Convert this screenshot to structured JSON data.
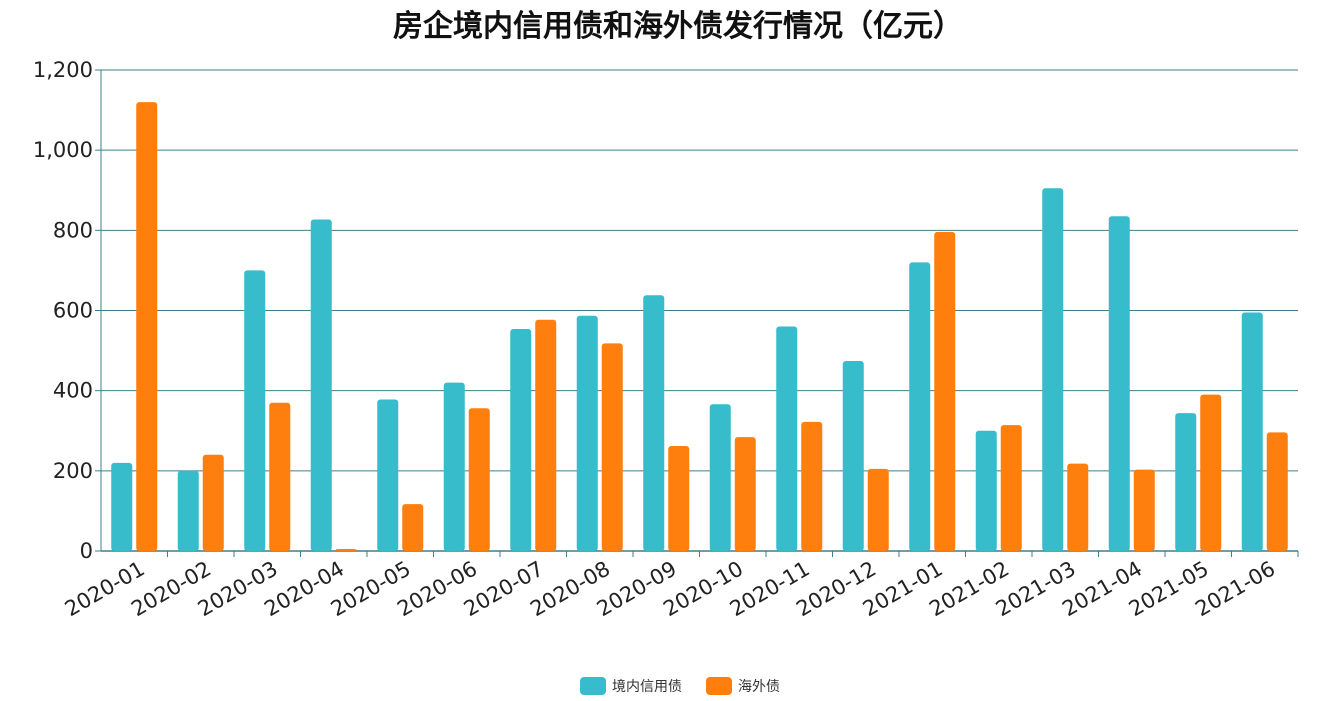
{
  "chart_data": {
    "type": "bar",
    "title": "房企境内信用债和海外债发行情况（亿元）",
    "xlabel": "",
    "ylabel": "",
    "ylim": [
      0,
      1200
    ],
    "yticks": [
      0,
      200,
      400,
      600,
      800,
      1000,
      1200
    ],
    "ytick_labels": [
      "0",
      "200",
      "400",
      "600",
      "800",
      "1,000",
      "1,200"
    ],
    "grid": true,
    "legend_position": "bottom",
    "categories": [
      "2020-01",
      "2020-02",
      "2020-03",
      "2020-04",
      "2020-05",
      "2020-06",
      "2020-07",
      "2020-08",
      "2020-09",
      "2020-10",
      "2020-11",
      "2020-12",
      "2021-01",
      "2021-02",
      "2021-03",
      "2021-04",
      "2021-05",
      "2021-06"
    ],
    "series": [
      {
        "name": "境内信用债",
        "color": "#36BCCA",
        "values": [
          220,
          200,
          700,
          827,
          378,
          420,
          554,
          587,
          638,
          366,
          560,
          474,
          720,
          300,
          905,
          835,
          344,
          595
        ]
      },
      {
        "name": "海外债",
        "color": "#FF7F0E",
        "values": [
          1120,
          240,
          370,
          5,
          117,
          356,
          577,
          518,
          262,
          284,
          322,
          205,
          796,
          314,
          218,
          203,
          390,
          296
        ]
      }
    ]
  }
}
